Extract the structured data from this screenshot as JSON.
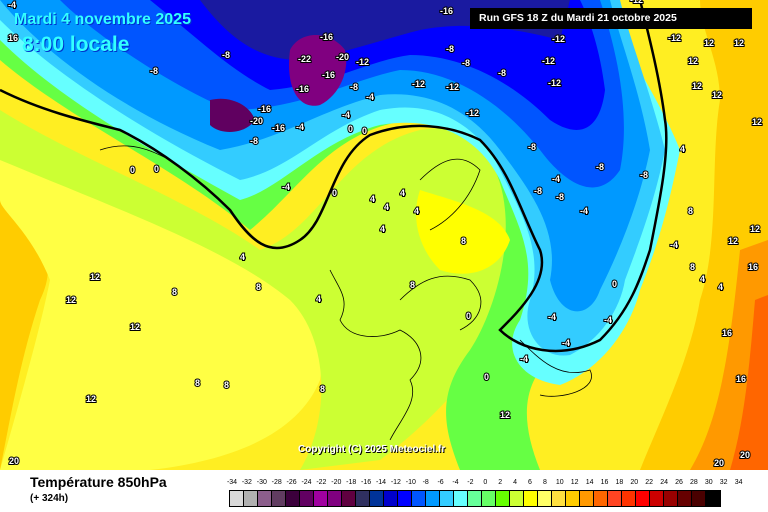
{
  "header": {
    "date": "Mardi 4 novembre 2025",
    "time": "8:00 locale",
    "run": "Run GFS 18 Z du Mardi 21 octobre 2025"
  },
  "copyright": "Copyright (C) 2025 Meteociel.fr",
  "footer": {
    "title": "Température 850hPa",
    "lead": "(+ 324h)"
  },
  "legend": {
    "labels": [
      "-34",
      "-32",
      "-30",
      "-28",
      "-26",
      "-24",
      "-22",
      "-20",
      "-18",
      "-16",
      "-14",
      "-12",
      "-10",
      "-8",
      "-6",
      "-4",
      "-2",
      "0",
      "2",
      "4",
      "6",
      "8",
      "10",
      "12",
      "14",
      "16",
      "18",
      "20",
      "22",
      "24",
      "26",
      "28",
      "30",
      "32",
      "34"
    ],
    "colors": [
      "#d9d9d9",
      "#b0b0b0",
      "#8c5e8c",
      "#613c61",
      "#3c003c",
      "#620062",
      "#a000a0",
      "#800080",
      "#600040",
      "#303060",
      "#003399",
      "#0000cc",
      "#0000ff",
      "#0055ff",
      "#0099ff",
      "#33ccff",
      "#66ffff",
      "#66ff99",
      "#66ff66",
      "#66ff00",
      "#ccff33",
      "#ffff00",
      "#ffff66",
      "#ffe040",
      "#ffcc00",
      "#ff9900",
      "#ff6600",
      "#ff4422",
      "#ff3300",
      "#ff0000",
      "#cc0000",
      "#990000",
      "#660000",
      "#4a0000",
      "#000000"
    ]
  },
  "map_labels": [
    "-4",
    "-12",
    "-12",
    "-16",
    "-12",
    "-16",
    "-20",
    "-22",
    "-16",
    "-8",
    "-8",
    "-8",
    "-12",
    "-12",
    "-8",
    "-8",
    "-12",
    "-12",
    "-12",
    "-8",
    "-4",
    "-12",
    "-16",
    "-16",
    "-20",
    "-16",
    "-8",
    "-4",
    "0",
    "-8",
    "-4",
    "0",
    "0",
    "0",
    "-4",
    "-8",
    "-8",
    "-8",
    "-4",
    "-4",
    "0",
    "4",
    "4",
    "4",
    "4",
    "8",
    "12",
    "12",
    "12",
    "12",
    "12",
    "12",
    "8",
    "8",
    "8",
    "8",
    "8",
    "12",
    "12",
    "4",
    "4",
    "4",
    "8",
    "8",
    "12",
    "12",
    "12",
    "12",
    "16",
    "16",
    "16",
    "20",
    "20",
    "20",
    "0",
    "0",
    "-4",
    "-4",
    "-4",
    "-4",
    "0",
    "4",
    "-8",
    "-4",
    "4",
    "8",
    "12",
    "4",
    "16"
  ]
}
